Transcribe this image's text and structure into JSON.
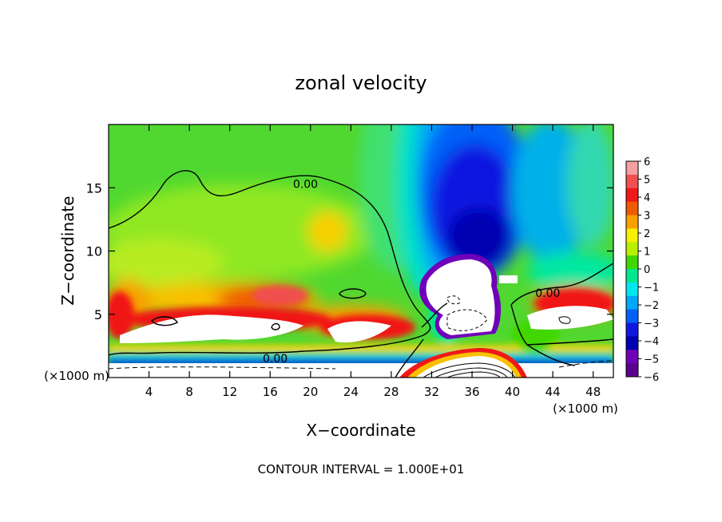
{
  "chart_data": {
    "type": "heatmap",
    "title": "zonal velocity",
    "xlabel": "X−coordinate",
    "ylabel": "Z−coordinate",
    "x_unit_left": "(×1000 m)",
    "x_unit_right": "(×1000 m)",
    "footer": "CONTOUR INTERVAL = 1.000E+01",
    "xlim": [
      0,
      50
    ],
    "ylim": [
      0,
      20
    ],
    "x_ticks": [
      4,
      8,
      12,
      16,
      20,
      24,
      28,
      32,
      36,
      40,
      44,
      48
    ],
    "y_ticks": [
      5,
      10,
      15
    ],
    "contour_labels": [
      {
        "text": "0.00",
        "x": 19.5,
        "y": 15.3
      },
      {
        "text": "0.00",
        "x": 43.5,
        "y": 6.7
      },
      {
        "text": "0.00",
        "x": 16.5,
        "y": 1.5
      }
    ],
    "colorbar": {
      "ticks": [
        "6",
        "5",
        "4",
        "3",
        "2",
        "1",
        "0",
        "−1",
        "−2",
        "−3",
        "−4",
        "−5",
        "−6"
      ],
      "colors": [
        "#f2a0a0",
        "#f25050",
        "#f01818",
        "#f05a00",
        "#f8a000",
        "#f8f000",
        "#b8f000",
        "#40d800",
        "#00e890",
        "#00e8f0",
        "#00a8f8",
        "#0060f8",
        "#1018e0",
        "#0000b0",
        "#7000b8",
        "#5a0090"
      ]
    }
  }
}
